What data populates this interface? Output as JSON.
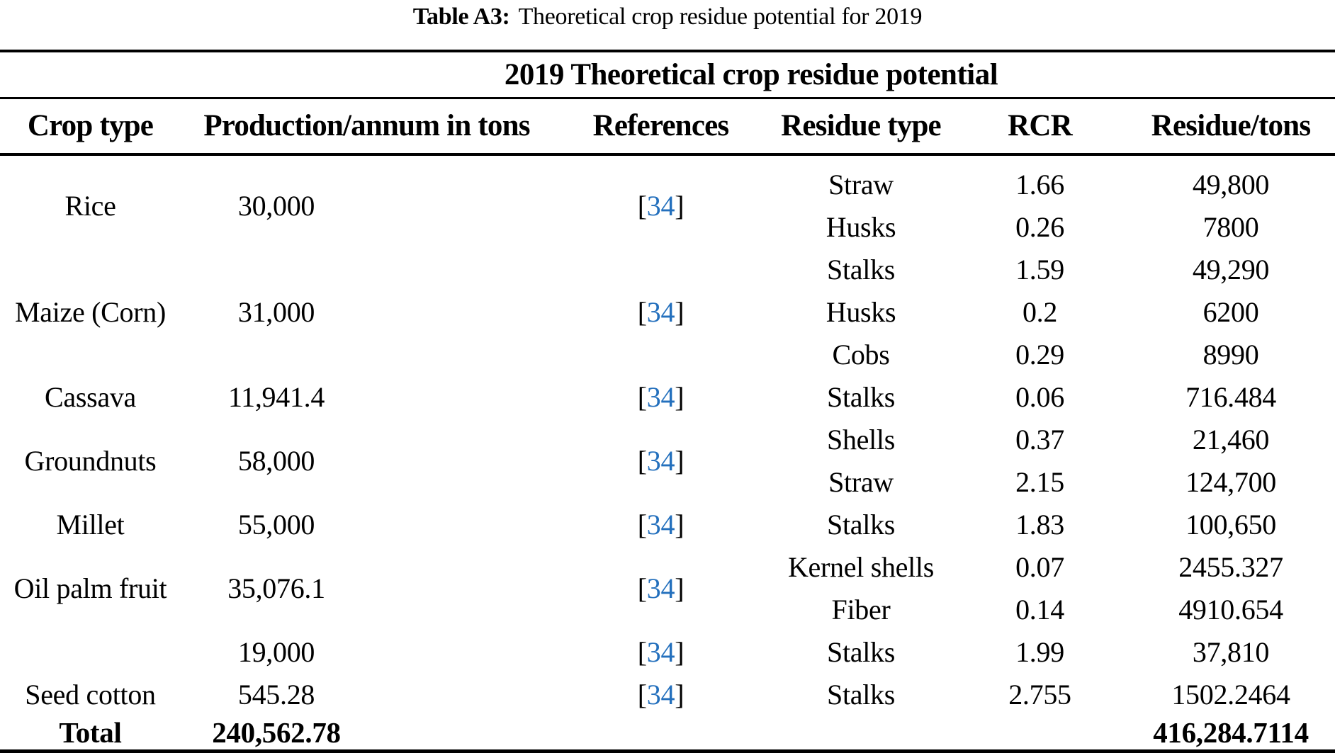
{
  "caption": {
    "label": "Table A3:",
    "text": "Theoretical crop residue potential for 2019"
  },
  "table": {
    "group_header": "2019 Theoretical crop residue potential",
    "columns": [
      "Crop type",
      "Production/annum in tons",
      "References",
      "Residue type",
      "RCR",
      "Residue/tons"
    ],
    "ref_brackets": {
      "open": "[",
      "close": "]"
    },
    "groups": [
      {
        "crop": "Rice",
        "production": "30,000",
        "ref": "34",
        "residues": [
          {
            "type": "Straw",
            "rcr": "1.66",
            "residue": "49,800"
          },
          {
            "type": "Husks",
            "rcr": "0.26",
            "residue": "7800"
          }
        ]
      },
      {
        "crop": "Maize (Corn)",
        "production": "31,000",
        "ref": "34",
        "residues": [
          {
            "type": "Stalks",
            "rcr": "1.59",
            "residue": "49,290"
          },
          {
            "type": "Husks",
            "rcr": "0.2",
            "residue": "6200"
          },
          {
            "type": "Cobs",
            "rcr": "0.29",
            "residue": "8990"
          }
        ]
      },
      {
        "crop": "Cassava",
        "production": "11,941.4",
        "ref": "34",
        "residues": [
          {
            "type": "Stalks",
            "rcr": "0.06",
            "residue": "716.484"
          }
        ]
      },
      {
        "crop": "Groundnuts",
        "production": "58,000",
        "ref": "34",
        "residues": [
          {
            "type": "Shells",
            "rcr": "0.37",
            "residue": "21,460"
          },
          {
            "type": "Straw",
            "rcr": "2.15",
            "residue": "124,700"
          }
        ]
      },
      {
        "crop": "Millet",
        "production": "55,000",
        "ref": "34",
        "residues": [
          {
            "type": "Stalks",
            "rcr": "1.83",
            "residue": "100,650"
          }
        ]
      },
      {
        "crop": "Oil palm fruit",
        "production": "35,076.1",
        "ref": "34",
        "residues": [
          {
            "type": "Kernel shells",
            "rcr": "0.07",
            "residue": "2455.327"
          },
          {
            "type": "Fiber",
            "rcr": "0.14",
            "residue": "4910.654"
          }
        ]
      },
      {
        "crop": "",
        "production": "19,000",
        "ref": "34",
        "residues": [
          {
            "type": "Stalks",
            "rcr": "1.99",
            "residue": "37,810"
          }
        ]
      },
      {
        "crop": "Seed cotton",
        "production": "545.28",
        "ref": "34",
        "residues": [
          {
            "type": "Stalks",
            "rcr": "2.755",
            "residue": "1502.2464"
          }
        ]
      }
    ],
    "total": {
      "label": "Total",
      "production": "240,562.78",
      "residue": "416,284.7114"
    }
  },
  "colors": {
    "reference_link": "#2470bd",
    "rule": "#000000",
    "text": "#000000",
    "background": "#ffffff"
  }
}
